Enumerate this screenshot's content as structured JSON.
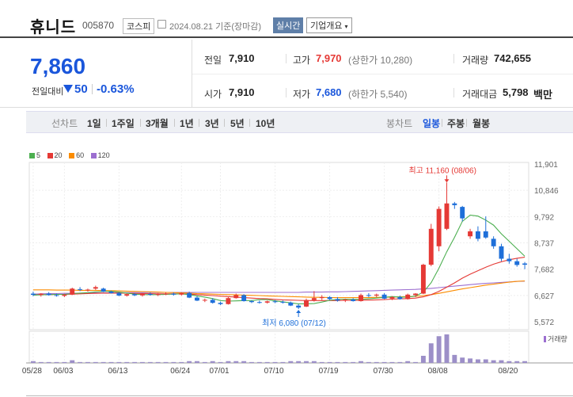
{
  "header": {
    "name": "휴니드",
    "code": "005870",
    "market": "코스피",
    "date": "2024.08.21 기준(장마감)",
    "live": "실시간",
    "company_info": "기업개요"
  },
  "summary": {
    "price": "7,860",
    "diff_label": "전일대비",
    "diff_value": "50",
    "diff_pct": "-0.63%",
    "prev_label": "전일",
    "prev_value": "7,910",
    "high_label": "고가",
    "high_value": "7,970",
    "high_sub": "(상한가 10,280)",
    "volume_label": "거래량",
    "volume_value": "742,655",
    "open_label": "시가",
    "open_value": "7,910",
    "low_label": "저가",
    "low_value": "7,680",
    "low_sub": "(하한가 5,540)",
    "amount_label": "거래대금",
    "amount_value": "5,798",
    "amount_unit": "백만"
  },
  "tabs": {
    "line_chart": "선차트",
    "periods": [
      "1일",
      "1주일",
      "3개월",
      "1년",
      "3년",
      "5년",
      "10년"
    ],
    "candle_chart": "봉차트",
    "daily": "일봉",
    "weekly": "주봉",
    "monthly": "월봉"
  },
  "legend": [
    {
      "label": "5",
      "color": "#4caf50"
    },
    {
      "label": "20",
      "color": "#e53935"
    },
    {
      "label": "60",
      "color": "#fb8c00"
    },
    {
      "label": "120",
      "color": "#9c6fd0"
    }
  ],
  "chart_data": {
    "type": "candlestick",
    "y_ticks": [
      "11,901",
      "10,846",
      "9,792",
      "8,737",
      "7,682",
      "6,627",
      "5,572"
    ],
    "ylim": [
      5572,
      11901
    ],
    "x_ticks": [
      "05/28",
      "06/03",
      "06/13",
      "06/24",
      "07/01",
      "07/10",
      "07/19",
      "07/30",
      "08/08",
      "08/20"
    ],
    "annotations": {
      "high": "최고 11,160 (08/06)",
      "low": "최저 6,080 (07/12)"
    },
    "volume_label": "거래량",
    "up_color": "#e53935",
    "down_color": "#1e6fd9",
    "candles": [
      {
        "o": 6700,
        "h": 6780,
        "l": 6600,
        "c": 6650
      },
      {
        "o": 6650,
        "h": 6720,
        "l": 6580,
        "c": 6700
      },
      {
        "o": 6700,
        "h": 6760,
        "l": 6620,
        "c": 6640
      },
      {
        "o": 6640,
        "h": 6700,
        "l": 6580,
        "c": 6610
      },
      {
        "o": 6610,
        "h": 6690,
        "l": 6560,
        "c": 6660
      },
      {
        "o": 6660,
        "h": 6940,
        "l": 6640,
        "c": 6900
      },
      {
        "o": 6880,
        "h": 6960,
        "l": 6800,
        "c": 6850
      },
      {
        "o": 6850,
        "h": 6900,
        "l": 6780,
        "c": 6860
      },
      {
        "o": 6900,
        "h": 7020,
        "l": 6850,
        "c": 6960
      },
      {
        "o": 6900,
        "h": 6940,
        "l": 6760,
        "c": 6780
      },
      {
        "o": 6780,
        "h": 6820,
        "l": 6700,
        "c": 6720
      },
      {
        "o": 6720,
        "h": 6760,
        "l": 6600,
        "c": 6620
      },
      {
        "o": 6620,
        "h": 6700,
        "l": 6580,
        "c": 6680
      },
      {
        "o": 6680,
        "h": 6720,
        "l": 6600,
        "c": 6630
      },
      {
        "o": 6630,
        "h": 6720,
        "l": 6580,
        "c": 6690
      },
      {
        "o": 6690,
        "h": 6740,
        "l": 6620,
        "c": 6650
      },
      {
        "o": 6650,
        "h": 6720,
        "l": 6600,
        "c": 6680
      },
      {
        "o": 6680,
        "h": 6760,
        "l": 6640,
        "c": 6700
      },
      {
        "o": 6700,
        "h": 6740,
        "l": 6620,
        "c": 6660
      },
      {
        "o": 6660,
        "h": 6760,
        "l": 6620,
        "c": 6720
      },
      {
        "o": 6720,
        "h": 6780,
        "l": 6520,
        "c": 6540
      },
      {
        "o": 6540,
        "h": 6600,
        "l": 6400,
        "c": 6420
      },
      {
        "o": 6420,
        "h": 6500,
        "l": 6360,
        "c": 6450
      },
      {
        "o": 6450,
        "h": 6520,
        "l": 6300,
        "c": 6330
      },
      {
        "o": 6330,
        "h": 6380,
        "l": 6240,
        "c": 6280
      },
      {
        "o": 6280,
        "h": 6560,
        "l": 6260,
        "c": 6520
      },
      {
        "o": 6520,
        "h": 6700,
        "l": 6500,
        "c": 6640
      },
      {
        "o": 6640,
        "h": 6680,
        "l": 6380,
        "c": 6400
      },
      {
        "o": 6400,
        "h": 6440,
        "l": 6320,
        "c": 6360
      },
      {
        "o": 6360,
        "h": 6420,
        "l": 6300,
        "c": 6340
      },
      {
        "o": 6340,
        "h": 6420,
        "l": 6300,
        "c": 6390
      },
      {
        "o": 6390,
        "h": 6440,
        "l": 6320,
        "c": 6370
      },
      {
        "o": 6370,
        "h": 6420,
        "l": 6300,
        "c": 6340
      },
      {
        "o": 6340,
        "h": 6380,
        "l": 6200,
        "c": 6220
      },
      {
        "o": 6220,
        "h": 6280,
        "l": 6080,
        "c": 6140
      },
      {
        "o": 6180,
        "h": 6500,
        "l": 6160,
        "c": 6440
      },
      {
        "o": 6440,
        "h": 6800,
        "l": 6380,
        "c": 6520
      },
      {
        "o": 6520,
        "h": 6640,
        "l": 6440,
        "c": 6560
      },
      {
        "o": 6560,
        "h": 6600,
        "l": 6440,
        "c": 6480
      },
      {
        "o": 6480,
        "h": 6560,
        "l": 6380,
        "c": 6420
      },
      {
        "o": 6420,
        "h": 6500,
        "l": 6360,
        "c": 6460
      },
      {
        "o": 6460,
        "h": 6520,
        "l": 6380,
        "c": 6400
      },
      {
        "o": 6400,
        "h": 6700,
        "l": 6380,
        "c": 6640
      },
      {
        "o": 6640,
        "h": 6720,
        "l": 6560,
        "c": 6620
      },
      {
        "o": 6620,
        "h": 6700,
        "l": 6560,
        "c": 6660
      },
      {
        "o": 6660,
        "h": 6720,
        "l": 6480,
        "c": 6500
      },
      {
        "o": 6500,
        "h": 6600,
        "l": 6440,
        "c": 6560
      },
      {
        "o": 6560,
        "h": 6620,
        "l": 6460,
        "c": 6480
      },
      {
        "o": 6480,
        "h": 6700,
        "l": 6460,
        "c": 6660
      },
      {
        "o": 6640,
        "h": 6720,
        "l": 6560,
        "c": 6700
      },
      {
        "o": 6700,
        "h": 7900,
        "l": 6680,
        "c": 7860
      },
      {
        "o": 7860,
        "h": 9500,
        "l": 7800,
        "c": 9300
      },
      {
        "o": 8600,
        "h": 10200,
        "l": 8400,
        "c": 10100
      },
      {
        "o": 9300,
        "h": 11160,
        "l": 9250,
        "c": 10320
      },
      {
        "o": 10320,
        "h": 10380,
        "l": 10100,
        "c": 10250
      },
      {
        "o": 10180,
        "h": 10220,
        "l": 9600,
        "c": 9720
      },
      {
        "o": 9000,
        "h": 9300,
        "l": 8900,
        "c": 9200
      },
      {
        "o": 9200,
        "h": 9400,
        "l": 8800,
        "c": 8900
      },
      {
        "o": 9200,
        "h": 9800,
        "l": 8900,
        "c": 8950
      },
      {
        "o": 8900,
        "h": 9000,
        "l": 8500,
        "c": 8600
      },
      {
        "o": 8600,
        "h": 8700,
        "l": 8000,
        "c": 8100
      },
      {
        "o": 8100,
        "h": 8300,
        "l": 7900,
        "c": 8000
      },
      {
        "o": 8000,
        "h": 8100,
        "l": 7780,
        "c": 7850
      },
      {
        "o": 7910,
        "h": 7970,
        "l": 7680,
        "c": 7860
      }
    ],
    "volume": [
      2,
      1,
      1,
      1,
      1,
      3,
      1,
      1,
      1,
      1,
      1,
      1,
      1,
      1,
      1,
      1,
      1,
      1,
      1,
      1,
      2,
      2,
      1,
      2,
      1,
      2,
      2,
      2,
      1,
      1,
      1,
      1,
      1,
      2,
      2,
      2,
      2,
      1,
      1,
      1,
      1,
      1,
      2,
      1,
      1,
      1,
      1,
      1,
      2,
      1,
      8,
      22,
      30,
      32,
      9,
      6,
      5,
      4,
      4,
      3,
      3,
      2,
      2,
      2
    ],
    "ma5": [
      6640,
      6650,
      6660,
      6670,
      6670,
      6700,
      6720,
      6740,
      6770,
      6790,
      6790,
      6760,
      6720,
      6680,
      6660,
      6660,
      6660,
      6670,
      6680,
      6690,
      6660,
      6610,
      6560,
      6500,
      6420,
      6400,
      6410,
      6420,
      6420,
      6460,
      6460,
      6410,
      6370,
      6330,
      6290,
      6290,
      6300,
      6360,
      6430,
      6470,
      6480,
      6470,
      6470,
      6490,
      6520,
      6550,
      6580,
      6560,
      6560,
      6600,
      6760,
      7140,
      7720,
      8380,
      8960,
      9600,
      9850,
      9810,
      9650,
      9450,
      9100,
      8800,
      8500,
      8200
    ],
    "ma20": [
      6650,
      6660,
      6660,
      6670,
      6670,
      6680,
      6690,
      6700,
      6710,
      6720,
      6720,
      6720,
      6720,
      6710,
      6700,
      6700,
      6690,
      6690,
      6690,
      6690,
      6680,
      6660,
      6640,
      6620,
      6600,
      6580,
      6560,
      6540,
      6520,
      6500,
      6490,
      6470,
      6450,
      6440,
      6430,
      6420,
      6420,
      6420,
      6420,
      6420,
      6430,
      6430,
      6430,
      6440,
      6450,
      6460,
      6480,
      6490,
      6500,
      6520,
      6570,
      6660,
      6790,
      6960,
      7130,
      7320,
      7480,
      7620,
      7760,
      7880,
      7980,
      8060,
      8120,
      8160
    ],
    "ma60": [
      6850,
      6850,
      6850,
      6840,
      6840,
      6840,
      6830,
      6830,
      6830,
      6820,
      6820,
      6810,
      6800,
      6790,
      6780,
      6770,
      6760,
      6750,
      6740,
      6730,
      6720,
      6700,
      6690,
      6680,
      6670,
      6660,
      6650,
      6640,
      6630,
      6620,
      6610,
      6600,
      6590,
      6580,
      6570,
      6560,
      6550,
      6550,
      6540,
      6540,
      6540,
      6540,
      6540,
      6540,
      6550,
      6550,
      6560,
      6570,
      6580,
      6590,
      6620,
      6660,
      6710,
      6770,
      6830,
      6890,
      6940,
      6990,
      7040,
      7080,
      7120,
      7160,
      7190,
      7210
    ],
    "ma120": [
      6680,
      6690,
      6700,
      6700,
      6710,
      6710,
      6720,
      6720,
      6730,
      6730,
      6730,
      6740,
      6740,
      6740,
      6740,
      6750,
      6750,
      6750,
      6750,
      6750,
      6750,
      6750,
      6750,
      6750,
      6750,
      6750,
      6750,
      6750,
      6750,
      6750,
      6750,
      6750,
      6750,
      6750,
      6750,
      6760,
      6760,
      6760,
      6770,
      6770,
      6780,
      6790,
      6800,
      6810,
      6820,
      6830,
      6840,
      6850,
      6860,
      6870,
      6890,
      6910,
      6940,
      6970,
      7000,
      7030,
      7060,
      7090,
      7110,
      7130,
      7150,
      7170,
      7190,
      7200
    ]
  }
}
